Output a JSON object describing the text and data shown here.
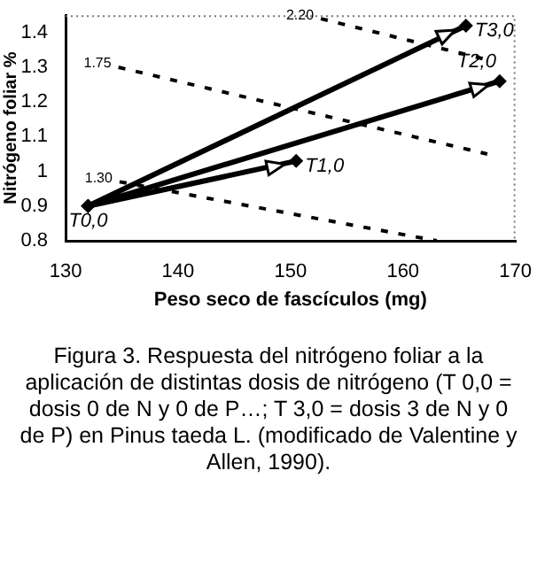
{
  "chart_data": {
    "type": "line",
    "xlabel": "Peso seco de fascículos (mg)",
    "ylabel": "Nitrógeno foliar %",
    "xlim": [
      130,
      170
    ],
    "xticks": [
      130,
      140,
      150,
      160,
      170
    ],
    "ylim": [
      0.8,
      1.45
    ],
    "yticks": [
      0.8,
      0.9,
      1,
      1.1,
      1.2,
      1.3,
      1.4
    ],
    "grid": false,
    "legend": false,
    "series": [
      {
        "x": [
          132,
          150.5
        ],
        "values": [
          0.9,
          1.03
        ],
        "color": "#000000",
        "marker": "diamond",
        "line_style": "solid"
      },
      {
        "x": [
          132,
          168.6
        ],
        "values": [
          0.9,
          1.26
        ],
        "color": "#000000",
        "marker": "diamond",
        "line_style": "solid"
      },
      {
        "x": [
          132,
          165.6
        ],
        "values": [
          0.9,
          1.42
        ],
        "color": "#000000",
        "marker": "diamond",
        "line_style": "solid"
      },
      {
        "x": [
          152.7,
          167.7
        ],
        "values": [
          1.44,
          1.32
        ],
        "color": "#000000",
        "marker": "none",
        "line_style": "dashed"
      },
      {
        "x": [
          134.7,
          167.5
        ],
        "values": [
          1.3,
          1.05
        ],
        "color": "#000000",
        "marker": "none",
        "line_style": "dashed"
      },
      {
        "x": [
          134.8,
          163
        ],
        "values": [
          0.97,
          0.8
        ],
        "color": "#000000",
        "marker": "none",
        "line_style": "dashed"
      }
    ],
    "annotations": [
      {
        "text": "T0,0",
        "x": 132,
        "y": 0.9
      },
      {
        "text": "T1,0",
        "x": 150.5,
        "y": 1.03
      },
      {
        "text": "T2,0",
        "x": 168.6,
        "y": 1.26
      },
      {
        "text": "T3,0",
        "x": 165.6,
        "y": 1.42
      },
      {
        "text": "2.20",
        "x": 152.7,
        "y": 1.44
      },
      {
        "text": "1.75",
        "x": 134.7,
        "y": 1.3
      },
      {
        "text": "1.30",
        "x": 134.8,
        "y": 0.97
      },
      "Figura 3. Respuesta del nitrógeno foliar a la aplicación de distintas dosis de nitrógeno (T 0,0 = dosis 0 de N y 0 de P…; T 3,0 = dosis 3 de N y 0 de P) en Pinus taeda L. (modificado de Valentine y Allen, 1990)."
    ]
  }
}
